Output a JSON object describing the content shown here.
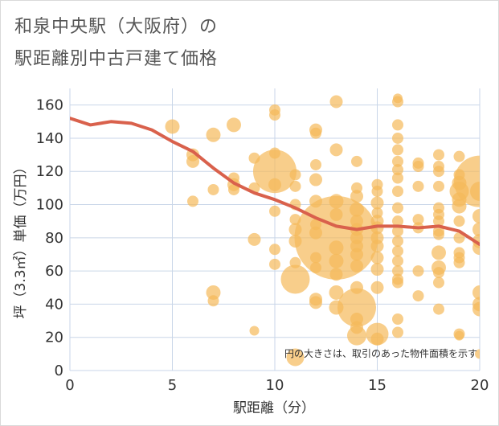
{
  "header": {
    "title_line1": "和泉中央駅（大阪府）の",
    "title_line2": "駅距離別中古戸建て価格"
  },
  "colors": {
    "bubble": "#f5b95a",
    "line": "#d9614c",
    "grid": "#c9d6e8",
    "plot_bg": "#ffffff"
  },
  "chart_data": {
    "type": "scatter",
    "xlabel": "駅距離（分）",
    "ylabel": "坪（3.3㎡）単価（万円）",
    "xlim": [
      0,
      20
    ],
    "ylim": [
      0,
      170
    ],
    "x_ticks": [
      0,
      5,
      10,
      15,
      20
    ],
    "y_ticks": [
      0,
      20,
      40,
      60,
      80,
      100,
      120,
      140,
      160
    ],
    "note": "円の大きさは、取引のあった物件面積を示す",
    "trend_line": {
      "x": [
        0,
        1,
        2,
        3,
        4,
        5,
        6,
        7,
        8,
        9,
        10,
        11,
        12,
        13,
        14,
        15,
        16,
        17,
        18,
        19,
        20
      ],
      "y": [
        152,
        148,
        150,
        149,
        145,
        138,
        132,
        122,
        113,
        107,
        103,
        98,
        92,
        87,
        85,
        87,
        87,
        86,
        87,
        84,
        76
      ]
    },
    "points": [
      {
        "x": 5,
        "y": 147,
        "s": 9
      },
      {
        "x": 6,
        "y": 130,
        "s": 8
      },
      {
        "x": 6,
        "y": 126,
        "s": 8
      },
      {
        "x": 6,
        "y": 102,
        "s": 7
      },
      {
        "x": 7,
        "y": 142,
        "s": 9
      },
      {
        "x": 7,
        "y": 109,
        "s": 7
      },
      {
        "x": 7,
        "y": 47,
        "s": 9
      },
      {
        "x": 7,
        "y": 42,
        "s": 7
      },
      {
        "x": 8,
        "y": 148,
        "s": 9
      },
      {
        "x": 8,
        "y": 116,
        "s": 7
      },
      {
        "x": 8,
        "y": 112,
        "s": 8
      },
      {
        "x": 8,
        "y": 109,
        "s": 7
      },
      {
        "x": 9,
        "y": 128,
        "s": 7
      },
      {
        "x": 9,
        "y": 110,
        "s": 7
      },
      {
        "x": 9,
        "y": 79,
        "s": 8
      },
      {
        "x": 9,
        "y": 24,
        "s": 6
      },
      {
        "x": 10,
        "y": 157,
        "s": 7
      },
      {
        "x": 10,
        "y": 154,
        "s": 7
      },
      {
        "x": 10,
        "y": 131,
        "s": 7
      },
      {
        "x": 10,
        "y": 120,
        "s": 27
      },
      {
        "x": 10,
        "y": 112,
        "s": 8
      },
      {
        "x": 10,
        "y": 96,
        "s": 7
      },
      {
        "x": 10,
        "y": 73,
        "s": 7
      },
      {
        "x": 10,
        "y": 64,
        "s": 7
      },
      {
        "x": 11,
        "y": 118,
        "s": 7
      },
      {
        "x": 11,
        "y": 111,
        "s": 7
      },
      {
        "x": 11,
        "y": 100,
        "s": 7
      },
      {
        "x": 11,
        "y": 91,
        "s": 7
      },
      {
        "x": 11,
        "y": 85,
        "s": 8
      },
      {
        "x": 11,
        "y": 78,
        "s": 8
      },
      {
        "x": 11,
        "y": 65,
        "s": 7
      },
      {
        "x": 11,
        "y": 55,
        "s": 18
      },
      {
        "x": 11,
        "y": 8,
        "s": 11
      },
      {
        "x": 12,
        "y": 145,
        "s": 8
      },
      {
        "x": 12,
        "y": 143,
        "s": 7
      },
      {
        "x": 12,
        "y": 124,
        "s": 7
      },
      {
        "x": 12,
        "y": 115,
        "s": 8
      },
      {
        "x": 12,
        "y": 102,
        "s": 8
      },
      {
        "x": 12,
        "y": 88,
        "s": 7
      },
      {
        "x": 12,
        "y": 83,
        "s": 8
      },
      {
        "x": 12,
        "y": 68,
        "s": 7
      },
      {
        "x": 12,
        "y": 62,
        "s": 7
      },
      {
        "x": 12,
        "y": 43,
        "s": 8
      },
      {
        "x": 12,
        "y": 41,
        "s": 8
      },
      {
        "x": 13,
        "y": 162,
        "s": 8
      },
      {
        "x": 13,
        "y": 133,
        "s": 8
      },
      {
        "x": 13,
        "y": 102,
        "s": 9
      },
      {
        "x": 13,
        "y": 94,
        "s": 8
      },
      {
        "x": 13,
        "y": 80,
        "s": 52
      },
      {
        "x": 13,
        "y": 74,
        "s": 9
      },
      {
        "x": 13,
        "y": 66,
        "s": 9
      },
      {
        "x": 13,
        "y": 58,
        "s": 8
      },
      {
        "x": 13,
        "y": 47,
        "s": 9
      },
      {
        "x": 13,
        "y": 38,
        "s": 9
      },
      {
        "x": 14,
        "y": 126,
        "s": 7
      },
      {
        "x": 14,
        "y": 110,
        "s": 7
      },
      {
        "x": 14,
        "y": 105,
        "s": 8
      },
      {
        "x": 14,
        "y": 97,
        "s": 9
      },
      {
        "x": 14,
        "y": 90,
        "s": 8
      },
      {
        "x": 14,
        "y": 85,
        "s": 8
      },
      {
        "x": 14,
        "y": 80,
        "s": 8
      },
      {
        "x": 14,
        "y": 75,
        "s": 8
      },
      {
        "x": 14,
        "y": 70,
        "s": 8
      },
      {
        "x": 14,
        "y": 63,
        "s": 8
      },
      {
        "x": 14,
        "y": 50,
        "s": 8
      },
      {
        "x": 14,
        "y": 38,
        "s": 24
      },
      {
        "x": 14,
        "y": 31,
        "s": 8
      },
      {
        "x": 14,
        "y": 26,
        "s": 8
      },
      {
        "x": 14,
        "y": 21,
        "s": 12
      },
      {
        "x": 15,
        "y": 112,
        "s": 7
      },
      {
        "x": 15,
        "y": 108,
        "s": 7
      },
      {
        "x": 15,
        "y": 101,
        "s": 8
      },
      {
        "x": 15,
        "y": 95,
        "s": 7
      },
      {
        "x": 15,
        "y": 90,
        "s": 8
      },
      {
        "x": 15,
        "y": 86,
        "s": 8
      },
      {
        "x": 15,
        "y": 80,
        "s": 8
      },
      {
        "x": 15,
        "y": 75,
        "s": 8
      },
      {
        "x": 15,
        "y": 68,
        "s": 8
      },
      {
        "x": 15,
        "y": 61,
        "s": 8
      },
      {
        "x": 15,
        "y": 50,
        "s": 8
      },
      {
        "x": 15,
        "y": 22,
        "s": 14
      },
      {
        "x": 15,
        "y": 19,
        "s": 8
      },
      {
        "x": 16,
        "y": 164,
        "s": 6
      },
      {
        "x": 16,
        "y": 162,
        "s": 7
      },
      {
        "x": 16,
        "y": 148,
        "s": 7
      },
      {
        "x": 16,
        "y": 140,
        "s": 7
      },
      {
        "x": 16,
        "y": 133,
        "s": 7
      },
      {
        "x": 16,
        "y": 126,
        "s": 7
      },
      {
        "x": 16,
        "y": 121,
        "s": 7
      },
      {
        "x": 16,
        "y": 116,
        "s": 7
      },
      {
        "x": 16,
        "y": 108,
        "s": 7
      },
      {
        "x": 16,
        "y": 98,
        "s": 7
      },
      {
        "x": 16,
        "y": 90,
        "s": 7
      },
      {
        "x": 16,
        "y": 84,
        "s": 7
      },
      {
        "x": 16,
        "y": 78,
        "s": 7
      },
      {
        "x": 16,
        "y": 72,
        "s": 7
      },
      {
        "x": 16,
        "y": 66,
        "s": 7
      },
      {
        "x": 16,
        "y": 60,
        "s": 7
      },
      {
        "x": 16,
        "y": 55,
        "s": 7
      },
      {
        "x": 16,
        "y": 53,
        "s": 7
      },
      {
        "x": 16,
        "y": 31,
        "s": 7
      },
      {
        "x": 16,
        "y": 23,
        "s": 7
      },
      {
        "x": 17,
        "y": 125,
        "s": 7
      },
      {
        "x": 17,
        "y": 123,
        "s": 7
      },
      {
        "x": 17,
        "y": 111,
        "s": 7
      },
      {
        "x": 17,
        "y": 91,
        "s": 7
      },
      {
        "x": 17,
        "y": 86,
        "s": 7
      },
      {
        "x": 17,
        "y": 60,
        "s": 7
      },
      {
        "x": 17,
        "y": 45,
        "s": 7
      },
      {
        "x": 18,
        "y": 130,
        "s": 7
      },
      {
        "x": 18,
        "y": 123,
        "s": 7
      },
      {
        "x": 18,
        "y": 120,
        "s": 7
      },
      {
        "x": 18,
        "y": 111,
        "s": 7
      },
      {
        "x": 18,
        "y": 98,
        "s": 7
      },
      {
        "x": 18,
        "y": 94,
        "s": 7
      },
      {
        "x": 18,
        "y": 90,
        "s": 7
      },
      {
        "x": 18,
        "y": 84,
        "s": 7
      },
      {
        "x": 18,
        "y": 82,
        "s": 7
      },
      {
        "x": 18,
        "y": 71,
        "s": 9
      },
      {
        "x": 18,
        "y": 62,
        "s": 9
      },
      {
        "x": 18,
        "y": 59,
        "s": 7
      },
      {
        "x": 18,
        "y": 53,
        "s": 7
      },
      {
        "x": 18,
        "y": 37,
        "s": 7
      },
      {
        "x": 19,
        "y": 129,
        "s": 7
      },
      {
        "x": 19,
        "y": 118,
        "s": 7
      },
      {
        "x": 19,
        "y": 113,
        "s": 9
      },
      {
        "x": 19,
        "y": 108,
        "s": 12
      },
      {
        "x": 19,
        "y": 103,
        "s": 9
      },
      {
        "x": 19,
        "y": 99,
        "s": 9
      },
      {
        "x": 19,
        "y": 90,
        "s": 7
      },
      {
        "x": 19,
        "y": 80,
        "s": 7
      },
      {
        "x": 19,
        "y": 71,
        "s": 7
      },
      {
        "x": 19,
        "y": 68,
        "s": 7
      },
      {
        "x": 19,
        "y": 65,
        "s": 7
      },
      {
        "x": 19,
        "y": 22,
        "s": 7
      },
      {
        "x": 19,
        "y": 21,
        "s": 6
      },
      {
        "x": 20,
        "y": 114,
        "s": 32
      },
      {
        "x": 20,
        "y": 108,
        "s": 12
      },
      {
        "x": 20,
        "y": 93,
        "s": 9
      },
      {
        "x": 20,
        "y": 85,
        "s": 9
      },
      {
        "x": 20,
        "y": 78,
        "s": 9
      },
      {
        "x": 20,
        "y": 74,
        "s": 9
      },
      {
        "x": 20,
        "y": 47,
        "s": 9
      },
      {
        "x": 20,
        "y": 40,
        "s": 9
      },
      {
        "x": 20,
        "y": 37,
        "s": 9
      },
      {
        "x": 20,
        "y": 10,
        "s": 6
      }
    ]
  }
}
